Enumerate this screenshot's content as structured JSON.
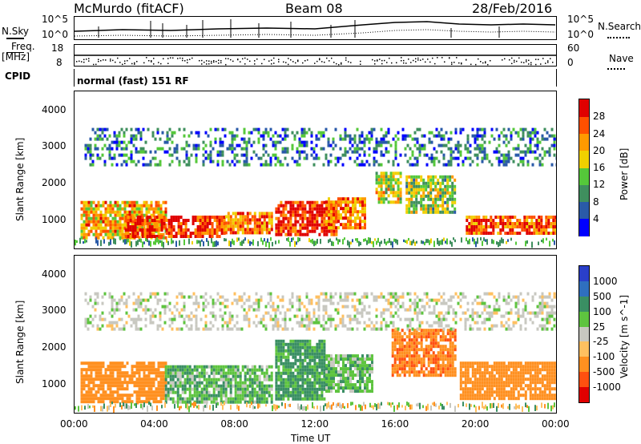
{
  "header": {
    "radar": "McMurdo (fitACF)",
    "beam": "Beam 08",
    "date": "28/Feb/2016",
    "nsky_label": "N.Sky",
    "nsearch_label": "N.Search",
    "freq_label": "Freq.",
    "freq_unit": "[MHz]",
    "nave_label": "Nave",
    "cpid_label": "CPID",
    "cpid_value": "normal (fast) 151 RF",
    "noise_ticks_left": [
      "10^5",
      "10^0"
    ],
    "noise_ticks_right": [
      "10^5",
      "10^0"
    ],
    "freq_ticks": [
      "18",
      "8"
    ],
    "nave_ticks": [
      "60",
      "0"
    ]
  },
  "colors": {
    "power_scale": [
      "#0000ff",
      "#2a5aa8",
      "#3f8f5e",
      "#55c83a",
      "#f0d000",
      "#ff9a00",
      "#ff5000",
      "#e00000"
    ],
    "velocity_scale": [
      "#2a3fc9",
      "#2f6fbf",
      "#3a8f63",
      "#5ec43f",
      "#c8c8c0",
      "#ffc060",
      "#ff9020",
      "#ff5010",
      "#e00000"
    ]
  },
  "chart_data": [
    {
      "type": "heatmap",
      "title": "Power",
      "xlabel": "Time UT",
      "ylabel": "Slant Range [km]",
      "x_ticks": [
        "00:00",
        "04:00",
        "08:00",
        "12:00",
        "16:00",
        "20:00",
        "00:00"
      ],
      "y_ticks": [
        "1000",
        "2000",
        "3000",
        "4000"
      ],
      "ylim": [
        200,
        4500
      ],
      "xlim_hours": [
        0,
        24
      ],
      "colorbar_label": "Power [dB]",
      "colorbar_ticks": [
        "4",
        "8",
        "12",
        "16",
        "20",
        "24",
        "28"
      ],
      "colorbar_range": [
        0,
        30
      ],
      "regions": [
        {
          "t0": 0.3,
          "t1": 4.5,
          "r0": 500,
          "r1": 1500,
          "level": 20
        },
        {
          "t0": 2.5,
          "t1": 7.5,
          "r0": 500,
          "r1": 1100,
          "level": 26
        },
        {
          "t0": 7.5,
          "t1": 9.8,
          "r0": 600,
          "r1": 1200,
          "level": 22
        },
        {
          "t0": 10.0,
          "t1": 13.0,
          "r0": 550,
          "r1": 1500,
          "level": 27
        },
        {
          "t0": 12.5,
          "t1": 14.5,
          "r0": 800,
          "r1": 1600,
          "level": 22
        },
        {
          "t0": 15.0,
          "t1": 16.2,
          "r0": 1500,
          "r1": 2300,
          "level": 16
        },
        {
          "t0": 16.5,
          "t1": 19.0,
          "r0": 1200,
          "r1": 2200,
          "level": 14
        },
        {
          "t0": 19.5,
          "t1": 24.0,
          "r0": 600,
          "r1": 1100,
          "level": 24
        },
        {
          "t0": 0.5,
          "t1": 24.0,
          "r0": 2500,
          "r1": 3500,
          "level": 8
        }
      ]
    },
    {
      "type": "heatmap",
      "title": "Velocity",
      "xlabel": "Time UT",
      "ylabel": "Slant Range [km]",
      "x_ticks": [
        "00:00",
        "04:00",
        "08:00",
        "12:00",
        "16:00",
        "20:00",
        "00:00"
      ],
      "y_ticks": [
        "1000",
        "2000",
        "3000",
        "4000"
      ],
      "ylim": [
        200,
        4500
      ],
      "xlim_hours": [
        0,
        24
      ],
      "colorbar_label": "Velocity [m s^-1]",
      "colorbar_ticks": [
        "1000",
        "500",
        "100",
        "25",
        "-25",
        "-100",
        "-500",
        "-1000"
      ],
      "regions": [
        {
          "t0": 0.3,
          "t1": 4.5,
          "r0": 500,
          "r1": 1600,
          "value": -300
        },
        {
          "t0": 4.5,
          "t1": 9.8,
          "r0": 500,
          "r1": 1500,
          "value": 80
        },
        {
          "t0": 10.0,
          "t1": 12.5,
          "r0": 550,
          "r1": 2200,
          "value": 150
        },
        {
          "t0": 12.5,
          "t1": 14.8,
          "r0": 800,
          "r1": 1800,
          "value": 60
        },
        {
          "t0": 15.8,
          "t1": 19.0,
          "r0": 1200,
          "r1": 2500,
          "value": -400
        },
        {
          "t0": 19.2,
          "t1": 24.0,
          "r0": 600,
          "r1": 1600,
          "value": -300
        },
        {
          "t0": 0.5,
          "t1": 24.0,
          "r0": 2500,
          "r1": 3500,
          "value": 0
        }
      ]
    }
  ]
}
